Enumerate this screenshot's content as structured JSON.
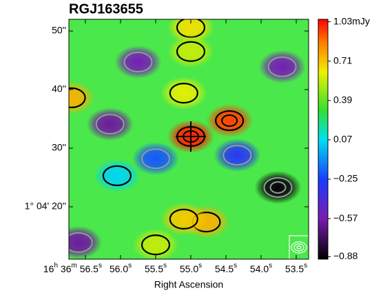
{
  "chart_data": {
    "type": "heatmap",
    "title": "RGJ163655",
    "xlabel": "Right Ascension",
    "xlim": [
      56.735,
      53.324
    ],
    "ylim": [
      11.06,
      52
    ],
    "xticks": [
      {
        "value": 56.5,
        "label": "16h 36m 56.5s"
      },
      {
        "value": 56.0,
        "label": "56.0s"
      },
      {
        "value": 55.5,
        "label": "55.5s"
      },
      {
        "value": 55.0,
        "label": "55.0s"
      },
      {
        "value": 54.5,
        "label": "54.5s"
      },
      {
        "value": 54.0,
        "label": "54.0s"
      },
      {
        "value": 53.5,
        "label": "53.5s"
      }
    ],
    "yticks": [
      {
        "value": 50,
        "label": "50''"
      },
      {
        "value": 40,
        "label": "40''"
      },
      {
        "value": 30,
        "label": "30''"
      },
      {
        "value": 20,
        "label": "1° 04' 20''"
      }
    ],
    "clim": [
      -0.9,
      1.05
    ],
    "cticks": [
      {
        "value": 1.03,
        "label": "1.03mJy"
      },
      0.71,
      0.39,
      0.07,
      {
        "value": -0.25,
        "label": "−0.25"
      },
      {
        "value": -0.57,
        "label": "−0.57"
      },
      {
        "value": -0.88,
        "label": "−0.88"
      }
    ],
    "x": [
      55.0,
      54.45,
      56.7,
      54.78,
      55.1,
      55.0,
      55.0,
      55.1,
      53.76,
      56.15,
      55.75,
      53.7,
      56.6,
      54.34,
      55.5,
      56.05,
      55.5
    ],
    "y": [
      32,
      34.7,
      38.6,
      17.4,
      17.9,
      50.6,
      46.5,
      39.4,
      23.3,
      34.1,
      44.7,
      43.9,
      13.9,
      28.8,
      28.2,
      25.3,
      13.5
    ],
    "values": [
      1.0,
      0.95,
      0.75,
      0.75,
      0.7,
      0.65,
      0.55,
      0.6,
      -0.88,
      -0.6,
      -0.55,
      -0.55,
      -0.6,
      -0.3,
      -0.2,
      0.05,
      0.55
    ]
  }
}
